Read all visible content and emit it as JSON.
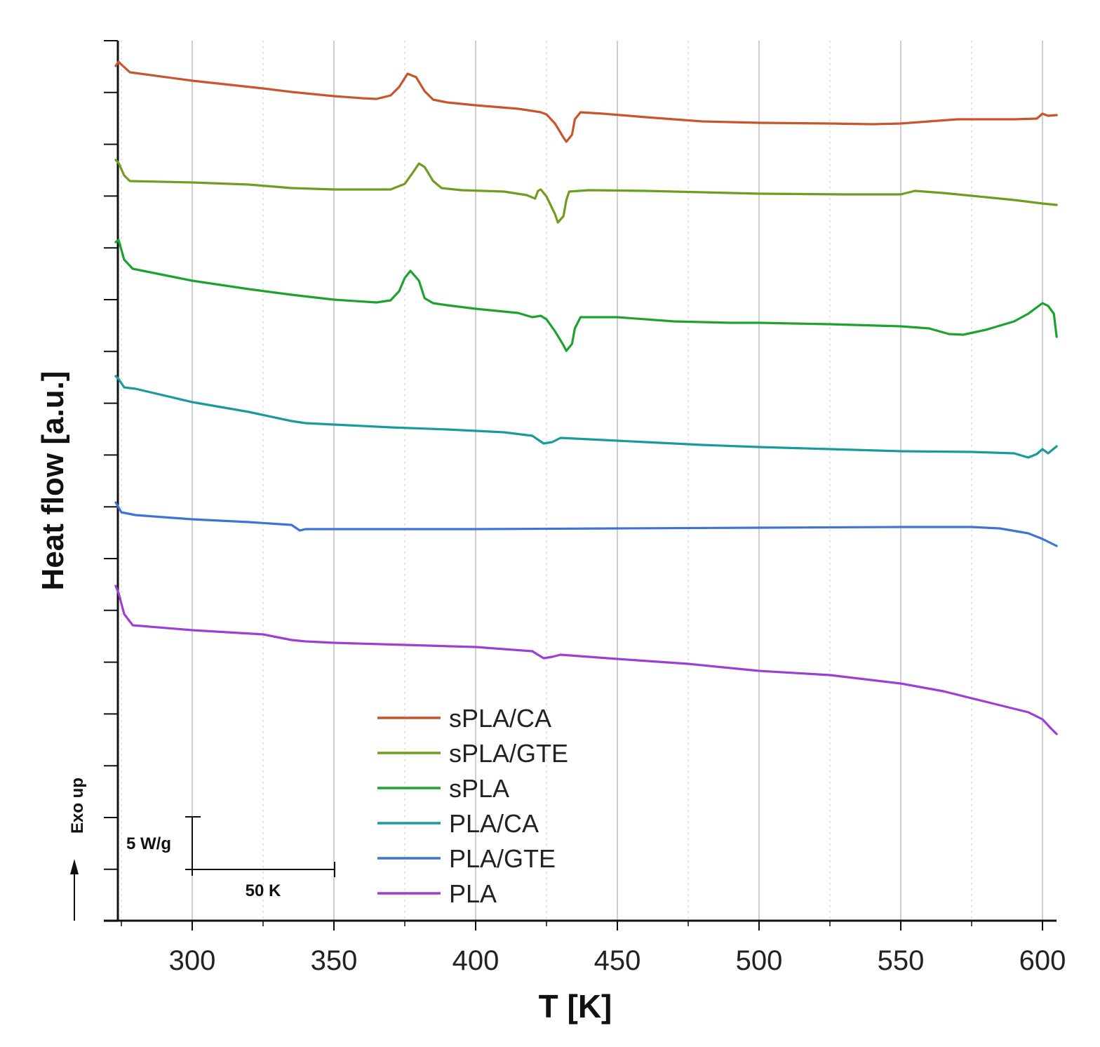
{
  "chart_data": {
    "type": "line",
    "title": "",
    "xlabel": "T [K]",
    "ylabel": "Heat flow [a.u.]",
    "xlim": [
      273,
      605
    ],
    "xticks": [
      300,
      350,
      400,
      450,
      500,
      550,
      600
    ],
    "x_minor_step": 25,
    "grid": true,
    "annotations": {
      "exo": "Exo up",
      "scale_y": "5 W/g",
      "scale_x": "50 K"
    },
    "series": [
      {
        "name": "sPLA/CA",
        "color": "#c8552b",
        "points": [
          [
            273,
            94
          ],
          [
            274,
            88
          ],
          [
            275,
            92
          ],
          [
            278,
            103
          ],
          [
            300,
            115
          ],
          [
            325,
            126
          ],
          [
            335,
            131
          ],
          [
            350,
            137
          ],
          [
            360,
            140
          ],
          [
            365,
            141
          ],
          [
            370,
            136
          ],
          [
            373,
            124
          ],
          [
            376,
            105
          ],
          [
            379,
            110
          ],
          [
            382,
            130
          ],
          [
            385,
            142
          ],
          [
            390,
            146
          ],
          [
            400,
            150
          ],
          [
            415,
            155
          ],
          [
            420,
            158
          ],
          [
            423,
            160
          ],
          [
            425,
            163
          ],
          [
            428,
            176
          ],
          [
            431,
            196
          ],
          [
            432,
            202
          ],
          [
            434,
            192
          ],
          [
            435,
            170
          ],
          [
            437,
            160
          ],
          [
            445,
            162
          ],
          [
            460,
            167
          ],
          [
            480,
            173
          ],
          [
            500,
            175
          ],
          [
            525,
            176
          ],
          [
            540,
            177
          ],
          [
            550,
            176
          ],
          [
            560,
            173
          ],
          [
            570,
            170
          ],
          [
            590,
            170
          ],
          [
            598,
            169
          ],
          [
            600,
            162
          ],
          [
            602,
            165
          ],
          [
            605,
            164
          ]
        ]
      },
      {
        "name": "sPLA/GTE",
        "color": "#6f9e1e",
        "points": [
          [
            273,
            228
          ],
          [
            274,
            232
          ],
          [
            276,
            250
          ],
          [
            278,
            258
          ],
          [
            300,
            260
          ],
          [
            320,
            263
          ],
          [
            335,
            268
          ],
          [
            350,
            270
          ],
          [
            370,
            270
          ],
          [
            375,
            262
          ],
          [
            378,
            245
          ],
          [
            380,
            233
          ],
          [
            382,
            238
          ],
          [
            385,
            258
          ],
          [
            388,
            268
          ],
          [
            395,
            271
          ],
          [
            410,
            273
          ],
          [
            418,
            278
          ],
          [
            421,
            283
          ],
          [
            422,
            272
          ],
          [
            423,
            270
          ],
          [
            425,
            280
          ],
          [
            428,
            305
          ],
          [
            429,
            317
          ],
          [
            431,
            308
          ],
          [
            432,
            285
          ],
          [
            433,
            273
          ],
          [
            440,
            271
          ],
          [
            460,
            272
          ],
          [
            500,
            276
          ],
          [
            530,
            277
          ],
          [
            550,
            277
          ],
          [
            555,
            272
          ],
          [
            565,
            275
          ],
          [
            580,
            281
          ],
          [
            590,
            285
          ],
          [
            600,
            290
          ],
          [
            605,
            292
          ]
        ]
      },
      {
        "name": "sPLA",
        "color": "#1ea22f",
        "points": [
          [
            273,
            345
          ],
          [
            274,
            342
          ],
          [
            276,
            370
          ],
          [
            279,
            383
          ],
          [
            300,
            400
          ],
          [
            320,
            412
          ],
          [
            335,
            420
          ],
          [
            350,
            427
          ],
          [
            365,
            431
          ],
          [
            370,
            428
          ],
          [
            373,
            415
          ],
          [
            375,
            396
          ],
          [
            377,
            386
          ],
          [
            380,
            400
          ],
          [
            382,
            425
          ],
          [
            385,
            432
          ],
          [
            390,
            435
          ],
          [
            400,
            440
          ],
          [
            415,
            446
          ],
          [
            420,
            452
          ],
          [
            423,
            450
          ],
          [
            425,
            455
          ],
          [
            428,
            472
          ],
          [
            431,
            492
          ],
          [
            432,
            500
          ],
          [
            434,
            490
          ],
          [
            435,
            468
          ],
          [
            437,
            452
          ],
          [
            450,
            452
          ],
          [
            470,
            458
          ],
          [
            490,
            460
          ],
          [
            500,
            460
          ],
          [
            525,
            462
          ],
          [
            550,
            465
          ],
          [
            560,
            468
          ],
          [
            567,
            476
          ],
          [
            572,
            477
          ],
          [
            580,
            470
          ],
          [
            590,
            458
          ],
          [
            595,
            447
          ],
          [
            598,
            438
          ],
          [
            600,
            432
          ],
          [
            602,
            436
          ],
          [
            604,
            447
          ],
          [
            605,
            480
          ]
        ]
      },
      {
        "name": "PLA/CA",
        "color": "#189b9b",
        "points": [
          [
            273,
            536
          ],
          [
            274,
            540
          ],
          [
            276,
            552
          ],
          [
            280,
            554
          ],
          [
            300,
            573
          ],
          [
            320,
            587
          ],
          [
            335,
            600
          ],
          [
            340,
            603
          ],
          [
            350,
            605
          ],
          [
            370,
            609
          ],
          [
            390,
            612
          ],
          [
            410,
            616
          ],
          [
            420,
            621
          ],
          [
            424,
            632
          ],
          [
            427,
            630
          ],
          [
            430,
            624
          ],
          [
            440,
            626
          ],
          [
            460,
            630
          ],
          [
            480,
            634
          ],
          [
            500,
            637
          ],
          [
            525,
            640
          ],
          [
            550,
            643
          ],
          [
            575,
            644
          ],
          [
            590,
            646
          ],
          [
            595,
            652
          ],
          [
            598,
            647
          ],
          [
            600,
            640
          ],
          [
            602,
            646
          ],
          [
            605,
            636
          ]
        ]
      },
      {
        "name": "PLA/GTE",
        "color": "#3f73d8",
        "points": [
          [
            273,
            716
          ],
          [
            275,
            730
          ],
          [
            280,
            734
          ],
          [
            300,
            740
          ],
          [
            320,
            744
          ],
          [
            335,
            748
          ],
          [
            338,
            756
          ],
          [
            340,
            754
          ],
          [
            350,
            754
          ],
          [
            400,
            754
          ],
          [
            450,
            753
          ],
          [
            500,
            752
          ],
          [
            550,
            751
          ],
          [
            575,
            751
          ],
          [
            585,
            753
          ],
          [
            595,
            760
          ],
          [
            600,
            768
          ],
          [
            605,
            778
          ]
        ]
      },
      {
        "name": "PLA",
        "color": "#9c3fd6",
        "points": [
          [
            273,
            835
          ],
          [
            274,
            845
          ],
          [
            276,
            875
          ],
          [
            279,
            891
          ],
          [
            300,
            898
          ],
          [
            325,
            904
          ],
          [
            335,
            912
          ],
          [
            340,
            914
          ],
          [
            350,
            916
          ],
          [
            375,
            919
          ],
          [
            400,
            922
          ],
          [
            420,
            928
          ],
          [
            424,
            938
          ],
          [
            427,
            936
          ],
          [
            430,
            933
          ],
          [
            450,
            939
          ],
          [
            475,
            946
          ],
          [
            500,
            956
          ],
          [
            525,
            962
          ],
          [
            550,
            974
          ],
          [
            565,
            985
          ],
          [
            580,
            1000
          ],
          [
            590,
            1010
          ],
          [
            595,
            1015
          ],
          [
            600,
            1025
          ],
          [
            603,
            1038
          ],
          [
            605,
            1046
          ]
        ]
      }
    ]
  }
}
